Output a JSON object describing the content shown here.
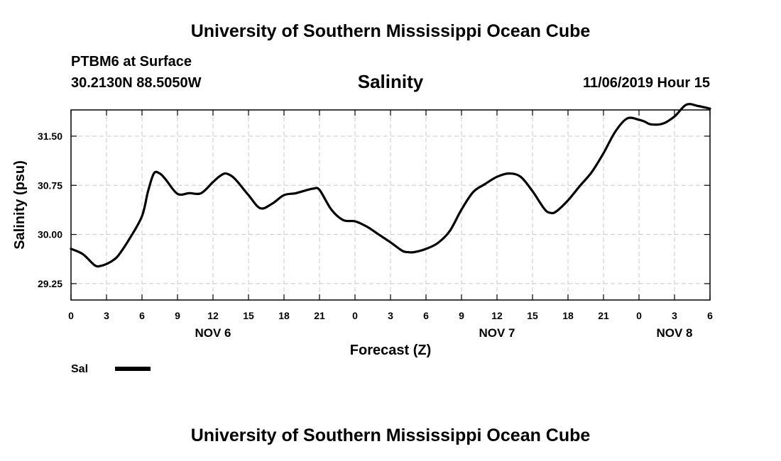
{
  "header": {
    "title": "University of Southern Mississippi Ocean Cube",
    "station": "PTBM6 at Surface",
    "coords": "30.2130N 88.5050W",
    "timestamp": "11/06/2019 Hour 15",
    "footer_title": "University of Southern Mississippi Ocean Cube"
  },
  "chart_data": {
    "type": "line",
    "title": "Salinity",
    "xlabel": "Forecast (Z)",
    "ylabel": "Salinity (psu)",
    "xlim": [
      0,
      54
    ],
    "ylim": [
      29.0,
      31.9
    ],
    "yticks": [
      29.25,
      30.0,
      30.75,
      31.5
    ],
    "ytick_labels": [
      "29.25",
      "30.00",
      "30.75",
      "31.50"
    ],
    "xticks": [
      0,
      3,
      6,
      9,
      12,
      15,
      18,
      21,
      24,
      27,
      30,
      33,
      36,
      39,
      42,
      45,
      48,
      51,
      54
    ],
    "xtick_labels": [
      "0",
      "3",
      "6",
      "9",
      "12",
      "15",
      "18",
      "21",
      "0",
      "3",
      "6",
      "9",
      "12",
      "15",
      "18",
      "21",
      "0",
      "3",
      "6"
    ],
    "day_labels": [
      {
        "label": "NOV 6",
        "x": 12
      },
      {
        "label": "NOV 7",
        "x": 36
      },
      {
        "label": "NOV 8",
        "x": 51
      }
    ],
    "grid": true,
    "legend": {
      "position": "bottom-left",
      "entries": [
        {
          "label": "Sal",
          "color": "#000000"
        }
      ]
    },
    "series": [
      {
        "name": "Sal",
        "color": "#000000",
        "x": [
          0,
          1,
          2,
          2.5,
          3,
          3.5,
          4,
          5,
          6,
          6.5,
          7,
          7.5,
          8,
          9,
          10,
          11,
          12,
          12.5,
          13,
          13.5,
          14,
          15,
          16,
          17,
          18,
          19,
          20,
          20.5,
          21,
          22,
          23,
          24,
          25,
          26,
          27,
          28,
          28.5,
          29,
          30,
          31,
          32,
          33,
          34,
          35,
          36,
          37,
          38,
          39,
          40,
          40.5,
          41,
          42,
          43,
          44,
          45,
          46,
          47,
          48,
          48.5,
          49,
          50,
          51,
          52,
          53,
          54
        ],
        "values": [
          29.78,
          29.7,
          29.53,
          29.52,
          29.55,
          29.6,
          29.68,
          29.95,
          30.28,
          30.65,
          30.93,
          30.93,
          30.84,
          30.62,
          30.63,
          30.63,
          30.8,
          30.88,
          30.93,
          30.9,
          30.82,
          30.6,
          30.4,
          30.47,
          30.6,
          30.63,
          30.68,
          30.7,
          30.68,
          30.38,
          30.22,
          30.2,
          30.12,
          30.0,
          29.88,
          29.75,
          29.73,
          29.73,
          29.78,
          29.87,
          30.05,
          30.38,
          30.65,
          30.77,
          30.88,
          30.93,
          30.88,
          30.66,
          30.39,
          30.33,
          30.35,
          30.52,
          30.74,
          30.95,
          31.24,
          31.57,
          31.77,
          31.75,
          31.72,
          31.68,
          31.69,
          31.8,
          31.98,
          31.96,
          31.92
        ]
      }
    ]
  }
}
